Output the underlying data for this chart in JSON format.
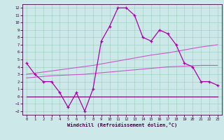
{
  "x": [
    0,
    1,
    2,
    3,
    4,
    5,
    6,
    7,
    8,
    9,
    10,
    11,
    12,
    13,
    14,
    15,
    16,
    17,
    18,
    19,
    20,
    21,
    22,
    23
  ],
  "line_wavy": [
    4.5,
    3.0,
    2.0,
    2.0,
    0.5,
    -1.5,
    0.5,
    -2.0,
    1.0,
    7.5,
    9.5,
    12.0,
    12.0,
    11.0,
    8.0,
    7.5,
    9.0,
    8.5,
    7.0,
    4.5,
    4.0,
    2.0,
    2.0,
    1.5
  ],
  "line_upper": [
    3.0,
    3.15,
    3.3,
    3.45,
    3.6,
    3.75,
    3.9,
    4.05,
    4.2,
    4.4,
    4.6,
    4.8,
    5.0,
    5.2,
    5.4,
    5.6,
    5.75,
    5.9,
    6.1,
    6.3,
    6.5,
    6.7,
    6.85,
    7.0
  ],
  "line_lower": [
    2.5,
    2.6,
    2.7,
    2.8,
    2.85,
    2.9,
    2.95,
    3.0,
    3.1,
    3.2,
    3.3,
    3.4,
    3.5,
    3.6,
    3.7,
    3.8,
    3.9,
    4.0,
    4.05,
    4.1,
    4.15,
    4.2,
    4.2,
    4.2
  ],
  "line_flat": [
    0.0,
    0.0,
    0.0,
    0.0,
    0.0,
    0.0,
    0.0,
    0.0,
    0.0,
    0.0,
    0.0,
    0.0,
    0.0,
    0.0,
    0.0,
    0.0,
    0.0,
    0.0,
    0.0,
    0.0,
    0.0,
    0.0,
    0.0,
    0.0
  ],
  "color_wavy": "#aa00aa",
  "color_upper": "#cc55cc",
  "color_lower": "#cc55cc",
  "color_flat": "#660066",
  "bg_color": "#cce8e8",
  "grid_color": "#99ccbb",
  "xlabel": "Windchill (Refroidissement éolien,°C)",
  "xlim": [
    -0.5,
    23.5
  ],
  "ylim": [
    -2.5,
    12.5
  ],
  "yticks": [
    -2,
    -1,
    0,
    1,
    2,
    3,
    4,
    5,
    6,
    7,
    8,
    9,
    10,
    11,
    12
  ],
  "xticks": [
    0,
    1,
    2,
    3,
    4,
    5,
    6,
    7,
    8,
    9,
    10,
    11,
    12,
    13,
    14,
    15,
    16,
    17,
    18,
    19,
    20,
    21,
    22,
    23
  ]
}
